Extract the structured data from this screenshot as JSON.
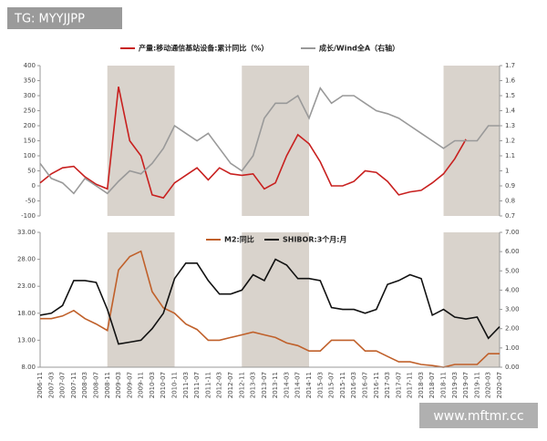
{
  "badge": "TG: MYYJJPP",
  "watermark": "www.mftmr.cc",
  "shaded_periods": [
    [
      "2008-11",
      "2010-11"
    ],
    [
      "2012-11",
      "2014-11"
    ],
    [
      "2018-11",
      "2020-07"
    ]
  ],
  "shade_color": "#d9d3cc",
  "chart_data": [
    {
      "type": "line",
      "series": [
        {
          "name": "产量:移动通信基站设备:累计同比（%）",
          "color": "#c8201f",
          "values": [
            10,
            40,
            60,
            65,
            30,
            5,
            -10,
            330,
            150,
            100,
            -30,
            -40,
            10,
            35,
            60,
            20,
            60,
            40,
            35,
            40,
            -10,
            10,
            100,
            170,
            140,
            80,
            0,
            0,
            15,
            50,
            45,
            15,
            -30,
            -20,
            -15,
            10,
            40,
            90,
            155,
            null,
            null,
            null
          ]
        },
        {
          "name": "成长/Wind全A（右轴）",
          "color": "#999999",
          "axis": "y2",
          "values": [
            1.05,
            0.95,
            0.92,
            0.85,
            0.95,
            0.9,
            0.85,
            0.93,
            1.0,
            0.98,
            1.05,
            1.15,
            1.3,
            1.25,
            1.2,
            1.25,
            1.15,
            1.05,
            1.0,
            1.1,
            1.35,
            1.45,
            1.45,
            1.5,
            1.35,
            1.55,
            1.45,
            1.5,
            1.5,
            1.45,
            1.4,
            1.38,
            1.35,
            1.3,
            1.25,
            1.2,
            1.15,
            1.2,
            1.2,
            1.2,
            1.3,
            1.3
          ]
        }
      ],
      "ylim": [
        -100,
        400
      ],
      "yticks": [
        -100,
        -50,
        0,
        50,
        100,
        150,
        200,
        250,
        300,
        350,
        400
      ],
      "y2lim": [
        0.7,
        1.7
      ],
      "y2ticks": [
        0.7,
        0.8,
        0.9,
        1,
        1.1,
        1.2,
        1.3,
        1.4,
        1.5,
        1.6,
        1.7
      ]
    },
    {
      "type": "line",
      "categories": [
        "2006-11",
        "2007-03",
        "2007-07",
        "2007-11",
        "2008-03",
        "2008-07",
        "2008-11",
        "2009-03",
        "2009-07",
        "2009-11",
        "2010-03",
        "2010-07",
        "2010-11",
        "2011-03",
        "2011-07",
        "2011-11",
        "2012-03",
        "2012-07",
        "2012-11",
        "2013-03",
        "2013-07",
        "2013-11",
        "2014-03",
        "2014-07",
        "2014-11",
        "2015-03",
        "2015-07",
        "2015-11",
        "2016-03",
        "2016-07",
        "2016-11",
        "2017-03",
        "2017-07",
        "2017-11",
        "2018-03",
        "2018-07",
        "2018-11",
        "2019-03",
        "2019-07",
        "2019-11",
        "2020-03",
        "2020-07"
      ],
      "series": [
        {
          "name": "M2:同比",
          "color": "#c0602a",
          "values": [
            17,
            17,
            17.5,
            18.5,
            17,
            16,
            14.8,
            26,
            28.5,
            29.5,
            22,
            19,
            18,
            16,
            15,
            13,
            13,
            13.5,
            14,
            14.5,
            14,
            13.5,
            12.5,
            12,
            11,
            11,
            13,
            13,
            13,
            11,
            11,
            10,
            9,
            9,
            8.5,
            8.3,
            8,
            8.5,
            8.5,
            8.5,
            10.5,
            10.5
          ]
        },
        {
          "name": "SHIBOR:3个月:月",
          "color": "#111111",
          "axis": "y2",
          "values": [
            2.7,
            2.8,
            3.2,
            4.5,
            4.5,
            4.4,
            3.0,
            1.2,
            1.3,
            1.4,
            2.0,
            2.8,
            4.6,
            5.4,
            5.4,
            4.5,
            3.8,
            3.8,
            4.0,
            4.8,
            4.5,
            5.6,
            5.3,
            4.6,
            4.6,
            4.5,
            3.1,
            3.0,
            3.0,
            2.8,
            3.0,
            4.3,
            4.5,
            4.8,
            4.6,
            2.7,
            3.0,
            2.6,
            2.5,
            2.6,
            1.5,
            2.1
          ]
        }
      ],
      "ylim": [
        8,
        33
      ],
      "yticks": [
        {
          "value": 8,
          "label": "8.00"
        },
        {
          "value": 13,
          "label": "13.00"
        },
        {
          "value": 18,
          "label": "18.00"
        },
        {
          "value": 23,
          "label": "23.00"
        },
        {
          "value": 28,
          "label": "28.00"
        },
        {
          "value": 33,
          "label": "33.00"
        }
      ],
      "y2lim": [
        0,
        7
      ],
      "y2ticks": [
        {
          "value": 0,
          "label": "0.00"
        },
        {
          "value": 1,
          "label": "1.00"
        },
        {
          "value": 2,
          "label": "2.00"
        },
        {
          "value": 3,
          "label": "3.00"
        },
        {
          "value": 4,
          "label": "4.00"
        },
        {
          "value": 5,
          "label": "5.00"
        },
        {
          "value": 6,
          "label": "6.00"
        },
        {
          "value": 7,
          "label": "7.00"
        }
      ]
    }
  ]
}
